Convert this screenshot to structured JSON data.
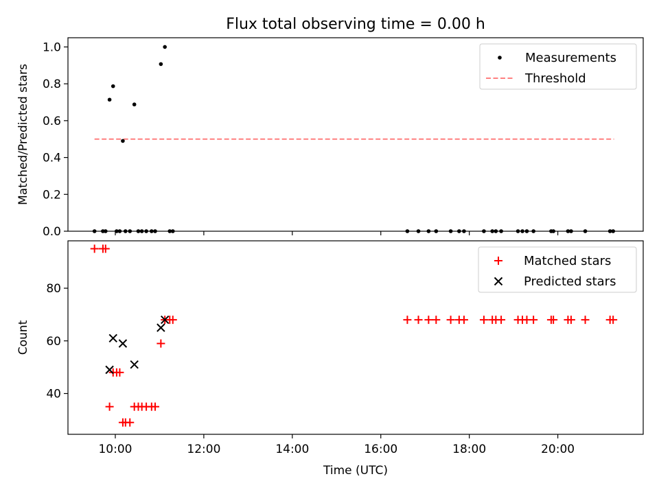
{
  "chart_data": {
    "type": "scatter",
    "title": "Flux total observing time = 0.00 h",
    "xlabel": "Time (UTC)",
    "x_ticks": [
      {
        "h": 10,
        "label": "10:00"
      },
      {
        "h": 12,
        "label": "12:00"
      },
      {
        "h": 14,
        "label": "14:00"
      },
      {
        "h": 16,
        "label": "16:00"
      },
      {
        "h": 18,
        "label": "18:00"
      },
      {
        "h": 20,
        "label": "20:00"
      }
    ],
    "xlim_hours": [
      8.93,
      21.93
    ],
    "colors": {
      "measurements": "#000000",
      "threshold": "#ff7f7f",
      "matched": "#ff0000",
      "predicted": "#000000"
    },
    "panels": [
      {
        "ylabel": "Matched/Predicted stars",
        "ylim": [
          0,
          1.05
        ],
        "y_ticks": [
          {
            "v": 0.0,
            "label": "0.0"
          },
          {
            "v": 0.2,
            "label": "0.2"
          },
          {
            "v": 0.4,
            "label": "0.4"
          },
          {
            "v": 0.6,
            "label": "0.6"
          },
          {
            "v": 0.8,
            "label": "0.8"
          },
          {
            "v": 1.0,
            "label": "1.0"
          }
        ],
        "legend": {
          "position": "top-right",
          "entries": [
            "Measurements",
            "Threshold"
          ]
        },
        "threshold": {
          "name": "Threshold",
          "y": 0.5,
          "x_range_hours": [
            9.53,
            21.27
          ],
          "style": "dashed"
        },
        "series": [
          {
            "name": "Measurements",
            "marker": "dot",
            "points": [
              [
                9.53,
                0
              ],
              [
                9.72,
                0
              ],
              [
                9.78,
                0
              ],
              [
                9.87,
                0.714
              ],
              [
                9.95,
                0.787
              ],
              [
                10.03,
                0
              ],
              [
                10.1,
                0
              ],
              [
                10.17,
                0.49
              ],
              [
                10.23,
                0
              ],
              [
                10.33,
                0
              ],
              [
                10.43,
                0.688
              ],
              [
                10.52,
                0
              ],
              [
                10.6,
                0
              ],
              [
                10.7,
                0
              ],
              [
                10.82,
                0
              ],
              [
                10.9,
                0
              ],
              [
                11.03,
                0.907
              ],
              [
                11.12,
                1.0
              ],
              [
                11.23,
                0
              ],
              [
                11.3,
                0
              ],
              [
                16.6,
                0
              ],
              [
                16.85,
                0
              ],
              [
                17.08,
                0
              ],
              [
                17.25,
                0
              ],
              [
                17.58,
                0
              ],
              [
                17.77,
                0
              ],
              [
                17.88,
                0
              ],
              [
                18.33,
                0
              ],
              [
                18.52,
                0
              ],
              [
                18.6,
                0
              ],
              [
                18.72,
                0
              ],
              [
                19.1,
                0
              ],
              [
                19.2,
                0
              ],
              [
                19.3,
                0
              ],
              [
                19.45,
                0
              ],
              [
                19.85,
                0
              ],
              [
                19.9,
                0
              ],
              [
                20.23,
                0
              ],
              [
                20.3,
                0
              ],
              [
                20.62,
                0
              ],
              [
                21.18,
                0
              ],
              [
                21.25,
                0
              ]
            ]
          }
        ]
      },
      {
        "ylabel": "Count",
        "ylim": [
          24.5,
          98
        ],
        "y_ticks": [
          {
            "v": 40,
            "label": "40"
          },
          {
            "v": 60,
            "label": "60"
          },
          {
            "v": 80,
            "label": "80"
          }
        ],
        "legend": {
          "position": "top-right",
          "entries": [
            "Matched stars",
            "Predicted stars"
          ]
        },
        "series": [
          {
            "name": "Matched stars",
            "marker": "plus",
            "points": [
              [
                9.53,
                95
              ],
              [
                9.72,
                95
              ],
              [
                9.78,
                95
              ],
              [
                9.87,
                35
              ],
              [
                9.95,
                48
              ],
              [
                10.03,
                48
              ],
              [
                10.1,
                48
              ],
              [
                10.17,
                29
              ],
              [
                10.23,
                29
              ],
              [
                10.33,
                29
              ],
              [
                10.43,
                35
              ],
              [
                10.52,
                35
              ],
              [
                10.6,
                35
              ],
              [
                10.7,
                35
              ],
              [
                10.82,
                35
              ],
              [
                10.9,
                35
              ],
              [
                11.03,
                59
              ],
              [
                11.12,
                68
              ],
              [
                11.23,
                68
              ],
              [
                11.3,
                68
              ],
              [
                16.6,
                68
              ],
              [
                16.85,
                68
              ],
              [
                17.08,
                68
              ],
              [
                17.25,
                68
              ],
              [
                17.58,
                68
              ],
              [
                17.77,
                68
              ],
              [
                17.88,
                68
              ],
              [
                18.33,
                68
              ],
              [
                18.52,
                68
              ],
              [
                18.6,
                68
              ],
              [
                18.72,
                68
              ],
              [
                19.1,
                68
              ],
              [
                19.2,
                68
              ],
              [
                19.3,
                68
              ],
              [
                19.45,
                68
              ],
              [
                19.85,
                68
              ],
              [
                19.9,
                68
              ],
              [
                20.23,
                68
              ],
              [
                20.3,
                68
              ],
              [
                20.62,
                68
              ],
              [
                21.18,
                68
              ],
              [
                21.25,
                68
              ]
            ]
          },
          {
            "name": "Predicted stars",
            "marker": "x",
            "points": [
              [
                9.87,
                49
              ],
              [
                9.95,
                61
              ],
              [
                10.17,
                59
              ],
              [
                10.43,
                51
              ],
              [
                11.03,
                65
              ],
              [
                11.12,
                68
              ]
            ]
          }
        ]
      }
    ]
  }
}
